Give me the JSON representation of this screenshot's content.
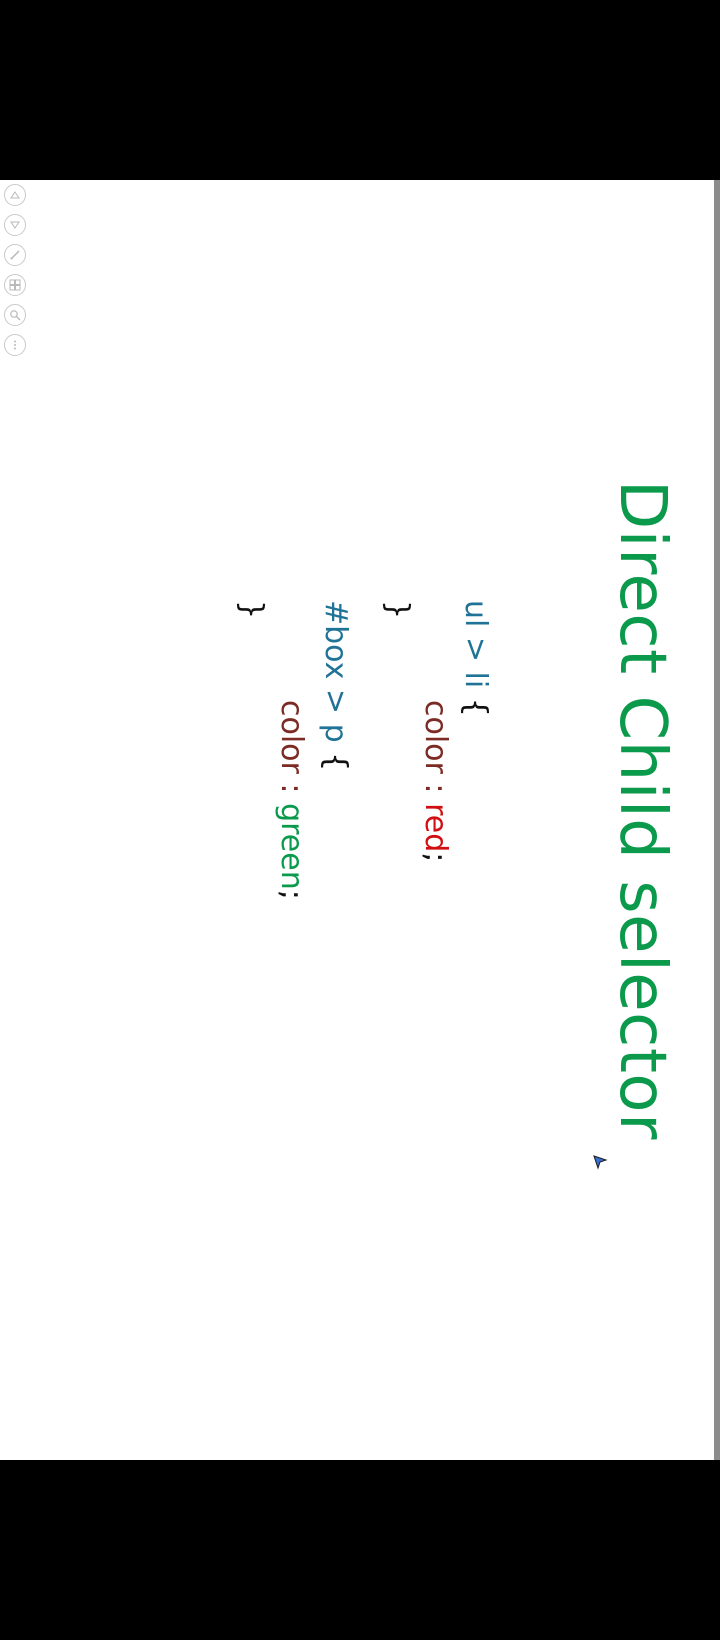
{
  "slide": {
    "title": "Direct Child selector",
    "code": {
      "rule1_selector": "ul > li",
      "rule1_open": "{",
      "rule1_prop": "color : ",
      "rule1_value": "red",
      "rule1_semicolon": ";",
      "rule1_close": "}",
      "rule2_selector": "#box > p",
      "rule2_open": "{",
      "rule2_prop": "color : ",
      "rule2_value": "green",
      "rule2_semicolon": ";",
      "rule2_close": "}"
    }
  },
  "toolbar": {
    "buttons": [
      {
        "icon": "previous-slide-icon"
      },
      {
        "icon": "next-slide-icon"
      },
      {
        "icon": "pen-icon"
      },
      {
        "icon": "slides-overview-icon"
      },
      {
        "icon": "zoom-icon"
      },
      {
        "icon": "more-options-icon"
      }
    ]
  },
  "colors": {
    "title": "#0b9a4c",
    "selector": "#1f7396",
    "property": "#7b2a24",
    "value_red": "#d10f12",
    "value_green": "#0b9a4c"
  }
}
